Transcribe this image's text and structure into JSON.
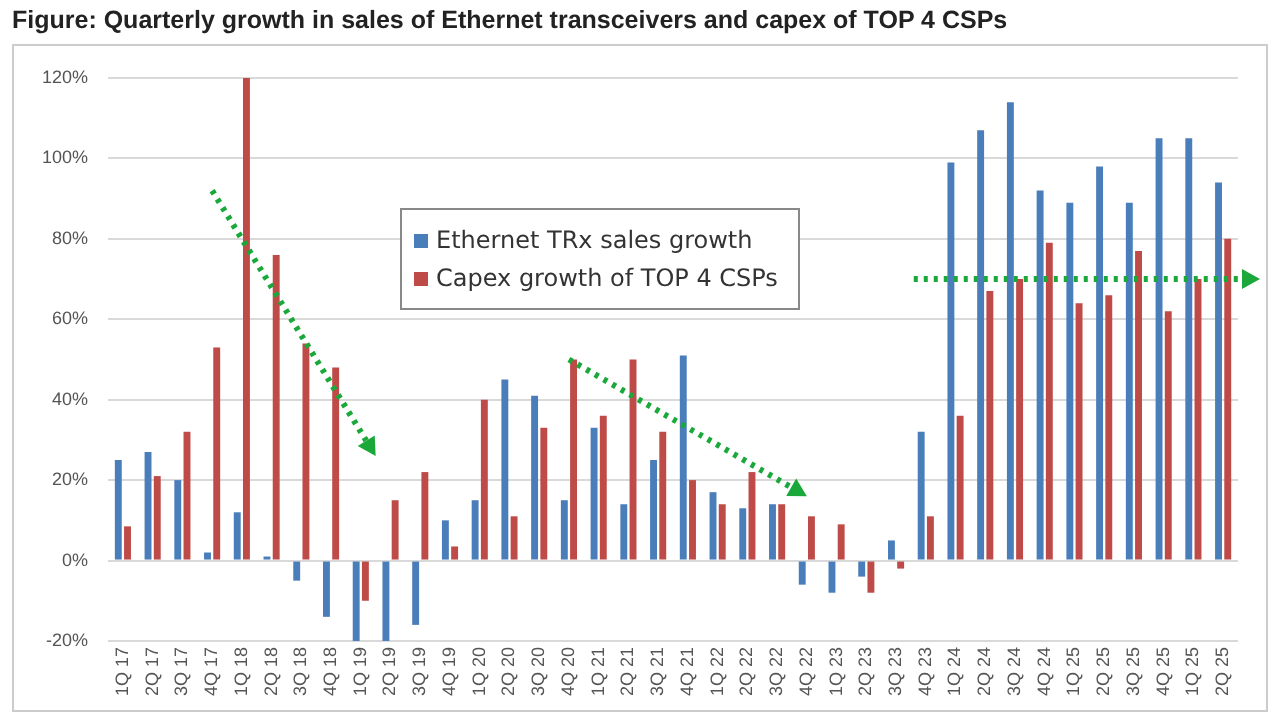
{
  "chart_data": {
    "type": "bar",
    "title": "Figure: Quarterly growth in sales of Ethernet transceivers and capex of TOP 4 CSPs",
    "categories": [
      "1Q 17",
      "2Q 17",
      "3Q 17",
      "4Q 17",
      "1Q 18",
      "2Q 18",
      "3Q 18",
      "4Q 18",
      "1Q 19",
      "2Q 19",
      "3Q 19",
      "4Q 19",
      "1Q 20",
      "2Q 20",
      "3Q 20",
      "4Q 20",
      "1Q 21",
      "2Q 21",
      "3Q 21",
      "4Q 21",
      "1Q 22",
      "2Q 22",
      "3Q 22",
      "4Q 22",
      "1Q 23",
      "2Q 23",
      "3Q 23",
      "4Q 23",
      "1Q 24",
      "2Q 24",
      "3Q 24",
      "4Q 24",
      "1Q 25",
      "2Q 25",
      "3Q 25",
      "4Q 25",
      "1Q 25",
      "2Q 25"
    ],
    "series": [
      {
        "name": "Ethernet TRx sales growth",
        "color": "#4a7ebb",
        "values": [
          25,
          27,
          20,
          2,
          12,
          1,
          -5,
          -14,
          -20,
          -20,
          -16,
          10,
          15,
          45,
          41,
          15,
          33,
          14,
          25,
          51,
          17,
          13,
          14,
          -6,
          -8,
          -4,
          5,
          32,
          99,
          107,
          114,
          92,
          89,
          98,
          89,
          105,
          105,
          94
        ]
      },
      {
        "name": "Capex growth of TOP 4 CSPs",
        "color": "#be4b48",
        "values": [
          8.5,
          21,
          32,
          53,
          120,
          76,
          54,
          48,
          -10,
          15,
          22,
          3.5,
          40,
          11,
          33,
          50,
          36,
          50,
          32,
          20,
          14,
          22,
          14,
          11,
          9,
          -8,
          -2,
          11,
          36,
          67,
          70,
          79,
          64,
          66,
          77,
          62,
          70,
          80
        ]
      }
    ],
    "ylim": [
      -20,
      120
    ],
    "yticks": [
      {
        "value": -20,
        "label": "-20%"
      },
      {
        "value": 0,
        "label": "0%"
      },
      {
        "value": 20,
        "label": "20%"
      },
      {
        "value": 40,
        "label": "40%"
      },
      {
        "value": 60,
        "label": "60%"
      },
      {
        "value": 80,
        "label": "80%"
      },
      {
        "value": 100,
        "label": "100%"
      },
      {
        "value": 120,
        "label": "120%"
      }
    ],
    "ref_lines": [
      {
        "axis": "y",
        "value": 70,
        "color": "#1aa83a",
        "line_style": "dotted"
      }
    ],
    "grid": "y",
    "legend": "top"
  }
}
